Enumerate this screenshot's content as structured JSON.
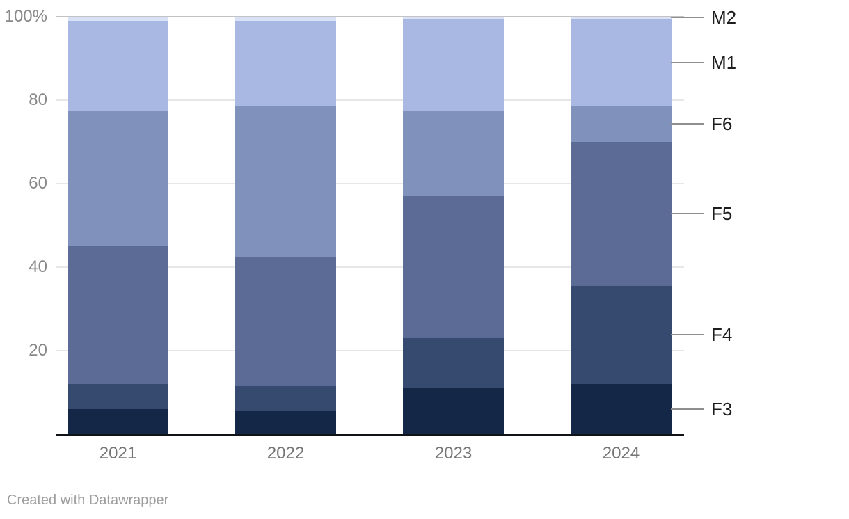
{
  "chart_data": {
    "type": "bar",
    "subtype": "stacked-column-percent",
    "title": "",
    "xlabel": "",
    "ylabel": "",
    "categories": [
      "2021",
      "2022",
      "2023",
      "2024"
    ],
    "series": [
      {
        "name": "F3",
        "color": "#152746",
        "values": [
          6,
          5.5,
          11,
          12
        ]
      },
      {
        "name": "F4",
        "color": "#364a70",
        "values": [
          6,
          6,
          12,
          23.5
        ]
      },
      {
        "name": "F5",
        "color": "#5b6b95",
        "values": [
          33,
          31,
          34,
          34.5
        ]
      },
      {
        "name": "F6",
        "color": "#8091bc",
        "values": [
          32.5,
          36,
          20.5,
          8.5
        ]
      },
      {
        "name": "M1",
        "color": "#a9b8e3",
        "values": [
          21.5,
          20.5,
          22,
          21
        ]
      },
      {
        "name": "M2",
        "color": "#d8e1f6",
        "values": [
          1,
          1,
          0.5,
          0.5
        ]
      }
    ],
    "right_labels_top_to_bottom": [
      "M2",
      "M1",
      "F6",
      "F5",
      "F4",
      "F3"
    ],
    "ylim": [
      0,
      100
    ],
    "yticks": [
      {
        "value": 100,
        "label": "100%"
      },
      {
        "value": 80,
        "label": "80"
      },
      {
        "value": 60,
        "label": "60"
      },
      {
        "value": 40,
        "label": "40"
      },
      {
        "value": 20,
        "label": "20"
      }
    ],
    "grid": true,
    "legend_position": "right-leader-labels",
    "style": {
      "gridline_color": "#e7e7e7",
      "gridline_100_color": "#c3c3c3",
      "axis_line_color": "#101418",
      "y_tick_color": "#898989",
      "x_tick_color": "#757575",
      "series_label_color": "#1d1d1d",
      "leader_line_color": "#8e8e8e"
    }
  },
  "footer": {
    "credit": "Created with Datawrapper"
  }
}
